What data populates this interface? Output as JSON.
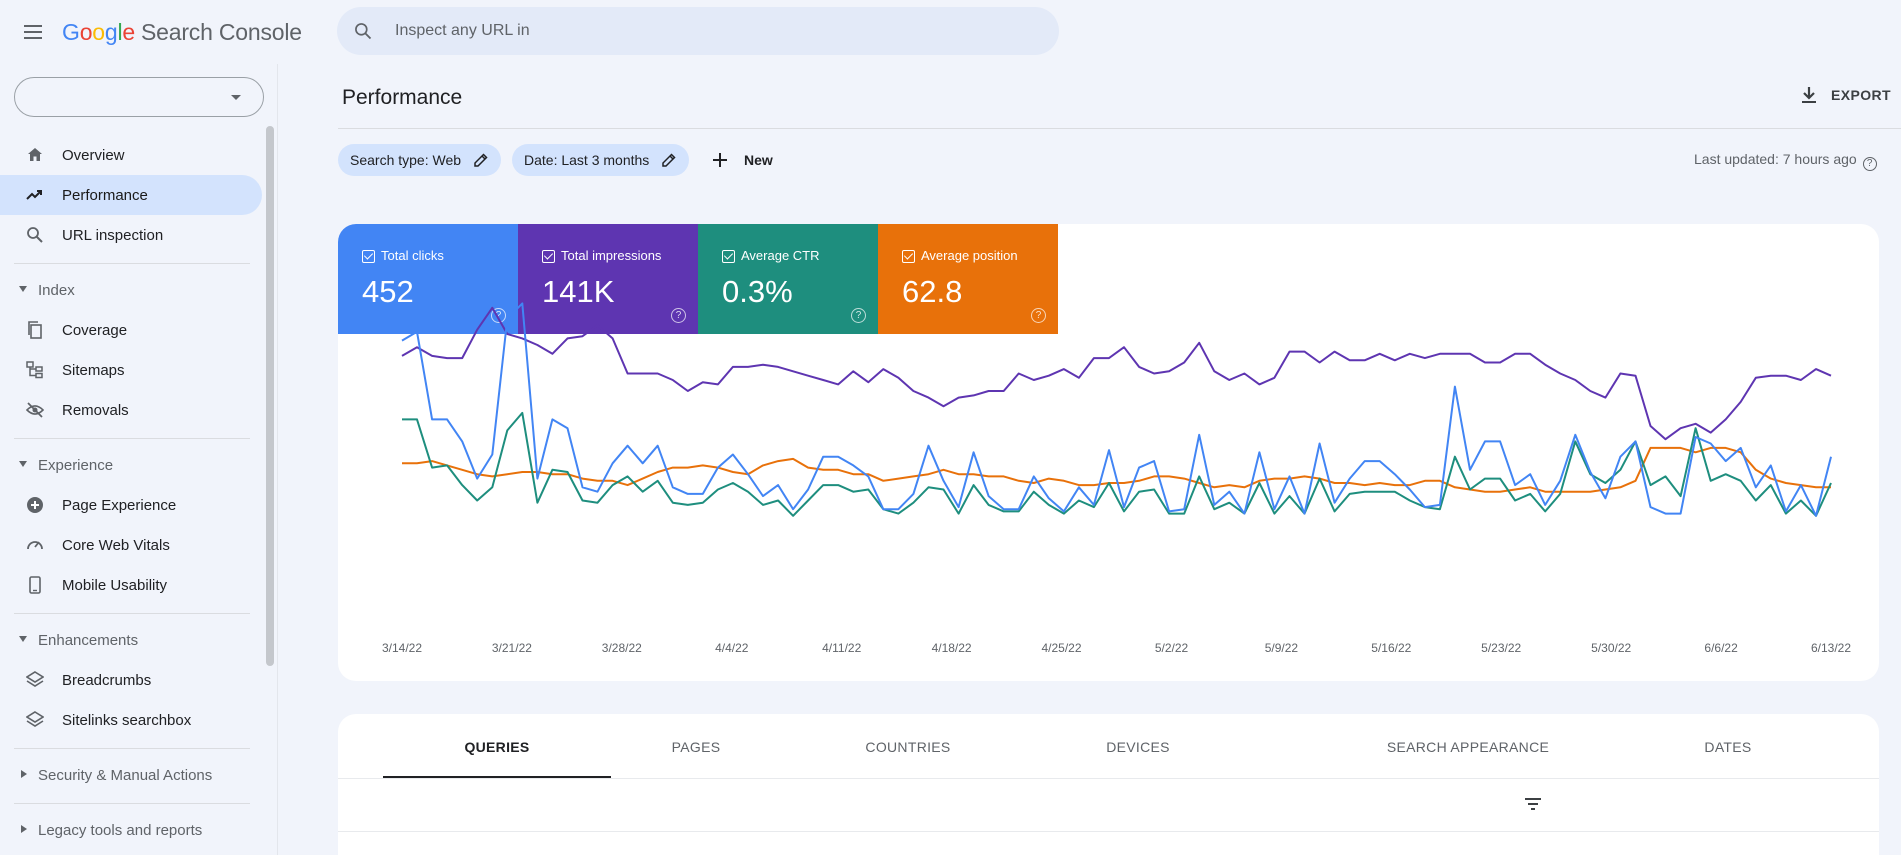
{
  "header": {
    "logo_google": [
      "G",
      "o",
      "o",
      "g",
      "l",
      "e"
    ],
    "logo_product": "Search Console",
    "search_placeholder": "Inspect any URL in"
  },
  "sidebar": {
    "property_value": "",
    "items_top": [
      {
        "label": "Overview",
        "icon": "home-icon",
        "active": false
      },
      {
        "label": "Performance",
        "icon": "trending-up-icon",
        "active": true
      },
      {
        "label": "URL inspection",
        "icon": "search-icon",
        "active": false
      }
    ],
    "sections": [
      {
        "label": "Index",
        "expanded": true,
        "items": [
          {
            "label": "Coverage",
            "icon": "file-copy-icon"
          },
          {
            "label": "Sitemaps",
            "icon": "sitemap-icon"
          },
          {
            "label": "Removals",
            "icon": "visibility-off-icon"
          }
        ]
      },
      {
        "label": "Experience",
        "expanded": true,
        "items": [
          {
            "label": "Page Experience",
            "icon": "plus-circle-icon"
          },
          {
            "label": "Core Web Vitals",
            "icon": "speed-gauge-icon"
          },
          {
            "label": "Mobile Usability",
            "icon": "smartphone-icon"
          }
        ]
      },
      {
        "label": "Enhancements",
        "expanded": true,
        "items": [
          {
            "label": "Breadcrumbs",
            "icon": "layers-icon"
          },
          {
            "label": "Sitelinks searchbox",
            "icon": "layers-icon"
          }
        ]
      },
      {
        "label": "Security & Manual Actions",
        "expanded": false,
        "items": []
      },
      {
        "label": "Legacy tools and reports",
        "expanded": false,
        "items": []
      }
    ]
  },
  "main": {
    "title": "Performance",
    "export_label": "EXPORT",
    "chips": [
      {
        "label": "Search type: Web"
      },
      {
        "label": "Date: Last 3 months"
      }
    ],
    "new_label": "New",
    "last_updated": "Last updated: 7 hours ago",
    "metrics": [
      {
        "label": "Total clicks",
        "value": "452",
        "color": "#4285f4"
      },
      {
        "label": "Total impressions",
        "value": "141K",
        "color": "#5e35b1"
      },
      {
        "label": "Average CTR",
        "value": "0.3%",
        "color": "#1e8e7e"
      },
      {
        "label": "Average position",
        "value": "62.8",
        "color": "#e8710a"
      }
    ],
    "tabs": [
      "QUERIES",
      "PAGES",
      "COUNTRIES",
      "DEVICES",
      "SEARCH APPEARANCE",
      "DATES"
    ],
    "active_tab": "QUERIES"
  },
  "chart_data": {
    "type": "line",
    "x_tick_labels": [
      "3/14/22",
      "3/21/22",
      "3/28/22",
      "4/4/22",
      "4/11/22",
      "4/18/22",
      "4/25/22",
      "5/2/22",
      "5/9/22",
      "5/16/22",
      "5/23/22",
      "5/30/22",
      "6/6/22",
      "6/13/22"
    ],
    "grid": false,
    "legend": "metric cards top-left",
    "series": [
      {
        "name": "Total impressions",
        "color": "#5e35b1",
        "values": [
          0.74,
          0.78,
          0.74,
          0.73,
          0.73,
          0.86,
          0.96,
          0.84,
          0.82,
          0.79,
          0.75,
          0.82,
          0.83,
          0.88,
          0.82,
          0.66,
          0.66,
          0.66,
          0.63,
          0.58,
          0.62,
          0.61,
          0.69,
          0.69,
          0.7,
          0.69,
          0.67,
          0.65,
          0.63,
          0.61,
          0.67,
          0.62,
          0.68,
          0.64,
          0.58,
          0.55,
          0.51,
          0.55,
          0.56,
          0.58,
          0.58,
          0.66,
          0.63,
          0.65,
          0.68,
          0.64,
          0.73,
          0.73,
          0.78,
          0.69,
          0.66,
          0.67,
          0.71,
          0.8,
          0.67,
          0.63,
          0.66,
          0.61,
          0.64,
          0.76,
          0.76,
          0.71,
          0.76,
          0.72,
          0.72,
          0.75,
          0.72,
          0.75,
          0.73,
          0.75,
          0.75,
          0.75,
          0.71,
          0.71,
          0.75,
          0.75,
          0.7,
          0.66,
          0.63,
          0.58,
          0.55,
          0.66,
          0.65,
          0.42,
          0.36,
          0.41,
          0.43,
          0.39,
          0.45,
          0.53,
          0.64,
          0.65,
          0.65,
          0.63,
          0.68,
          0.65
        ]
      },
      {
        "name": "Total clicks",
        "color": "#4285f4",
        "values": [
          0.81,
          0.85,
          0.45,
          0.45,
          0.35,
          0.18,
          0.29,
          0.91,
          0.98,
          0.18,
          0.45,
          0.41,
          0.14,
          0.12,
          0.25,
          0.33,
          0.25,
          0.33,
          0.14,
          0.11,
          0.11,
          0.23,
          0.29,
          0.2,
          0.1,
          0.15,
          0.04,
          0.13,
          0.28,
          0.28,
          0.24,
          0.19,
          0.04,
          0.04,
          0.11,
          0.33,
          0.17,
          0.05,
          0.3,
          0.1,
          0.04,
          0.04,
          0.19,
          0.09,
          0.03,
          0.14,
          0.06,
          0.31,
          0.05,
          0.23,
          0.26,
          0.03,
          0.04,
          0.38,
          0.06,
          0.12,
          0.02,
          0.3,
          0.04,
          0.19,
          0.02,
          0.34,
          0.07,
          0.18,
          0.26,
          0.26,
          0.2,
          0.13,
          0.05,
          0.06,
          0.6,
          0.22,
          0.35,
          0.35,
          0.15,
          0.2,
          0.06,
          0.17,
          0.38,
          0.21,
          0.09,
          0.28,
          0.35,
          0.05,
          0.02,
          0.02,
          0.37,
          0.34,
          0.26,
          0.32,
          0.14,
          0.24,
          0.03,
          0.15,
          0.01,
          0.28
        ]
      },
      {
        "name": "Average CTR",
        "color": "#1e8e7e",
        "values": [
          0.45,
          0.45,
          0.23,
          0.24,
          0.15,
          0.08,
          0.14,
          0.4,
          0.48,
          0.07,
          0.22,
          0.21,
          0.08,
          0.07,
          0.15,
          0.19,
          0.12,
          0.17,
          0.07,
          0.06,
          0.07,
          0.13,
          0.16,
          0.12,
          0.06,
          0.08,
          0.01,
          0.08,
          0.15,
          0.15,
          0.12,
          0.13,
          0.04,
          0.02,
          0.07,
          0.14,
          0.13,
          0.02,
          0.15,
          0.06,
          0.03,
          0.03,
          0.12,
          0.06,
          0.02,
          0.08,
          0.05,
          0.16,
          0.03,
          0.12,
          0.13,
          0.02,
          0.02,
          0.19,
          0.04,
          0.07,
          0.02,
          0.16,
          0.02,
          0.1,
          0.02,
          0.18,
          0.03,
          0.11,
          0.12,
          0.12,
          0.12,
          0.08,
          0.05,
          0.04,
          0.28,
          0.13,
          0.18,
          0.18,
          0.08,
          0.11,
          0.03,
          0.11,
          0.35,
          0.2,
          0.16,
          0.22,
          0.35,
          0.15,
          0.19,
          0.1,
          0.41,
          0.17,
          0.2,
          0.17,
          0.08,
          0.15,
          0.02,
          0.08,
          0.01,
          0.16
        ]
      },
      {
        "name": "Average position",
        "color": "#e8710a",
        "values": [
          0.25,
          0.25,
          0.26,
          0.24,
          0.22,
          0.2,
          0.19,
          0.2,
          0.21,
          0.21,
          0.2,
          0.2,
          0.18,
          0.17,
          0.17,
          0.15,
          0.18,
          0.21,
          0.23,
          0.23,
          0.24,
          0.23,
          0.21,
          0.2,
          0.24,
          0.26,
          0.27,
          0.23,
          0.22,
          0.22,
          0.2,
          0.2,
          0.17,
          0.18,
          0.19,
          0.2,
          0.22,
          0.2,
          0.2,
          0.19,
          0.19,
          0.17,
          0.16,
          0.18,
          0.17,
          0.15,
          0.15,
          0.16,
          0.16,
          0.17,
          0.19,
          0.19,
          0.18,
          0.16,
          0.14,
          0.15,
          0.14,
          0.17,
          0.18,
          0.18,
          0.19,
          0.18,
          0.16,
          0.16,
          0.15,
          0.16,
          0.15,
          0.15,
          0.17,
          0.17,
          0.14,
          0.13,
          0.12,
          0.12,
          0.13,
          0.14,
          0.12,
          0.12,
          0.12,
          0.12,
          0.13,
          0.14,
          0.17,
          0.32,
          0.32,
          0.32,
          0.3,
          0.32,
          0.32,
          0.3,
          0.22,
          0.18,
          0.16,
          0.15,
          0.14,
          0.14
        ]
      }
    ]
  }
}
